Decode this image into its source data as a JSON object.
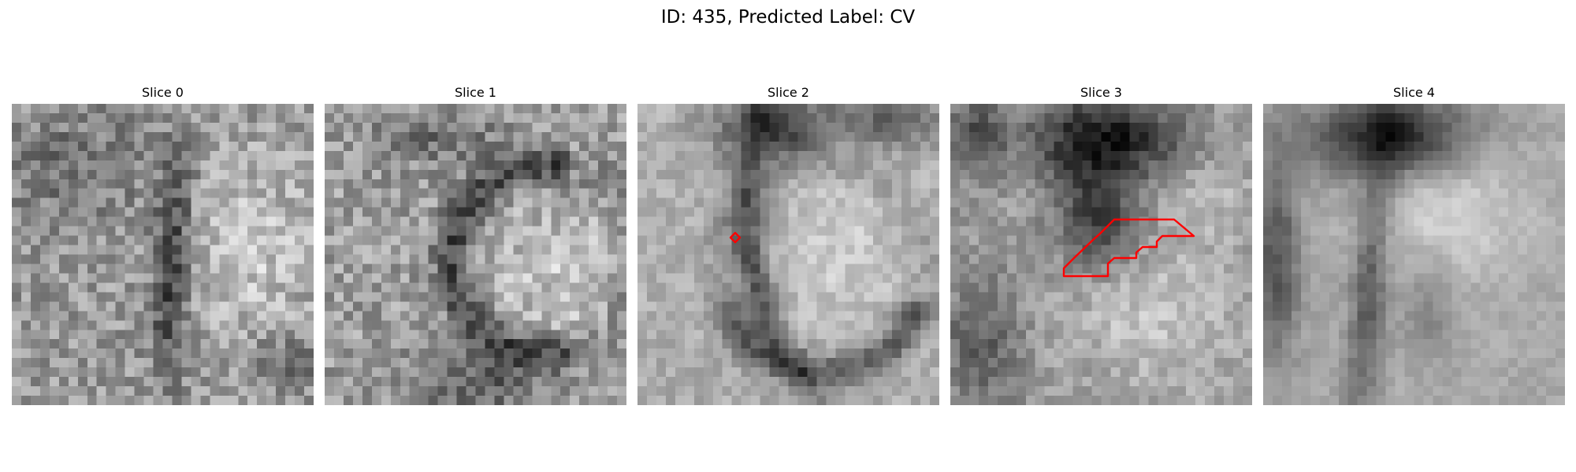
{
  "figure": {
    "title": "ID: 435, Predicted Label: CV"
  },
  "panels": [
    {
      "title": "Slice 0"
    },
    {
      "title": "Slice 1"
    },
    {
      "title": "Slice 2"
    },
    {
      "title": "Slice 3"
    },
    {
      "title": "Slice 4"
    }
  ],
  "colors": {
    "contour": "#ff0000",
    "background": "#ffffff"
  }
}
